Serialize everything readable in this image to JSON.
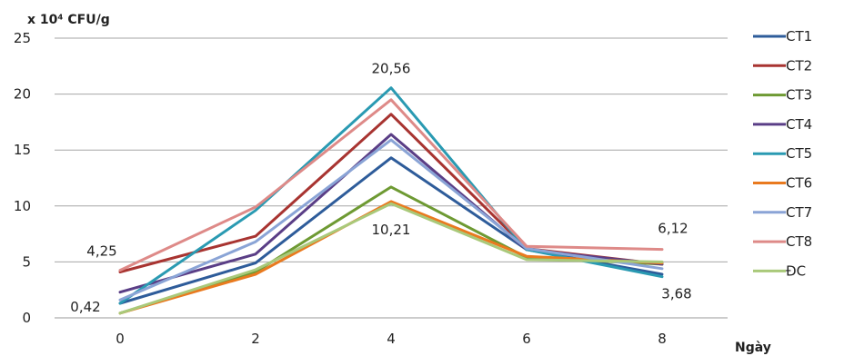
{
  "chart_data": {
    "type": "line",
    "title": "",
    "ylabel": "x 10⁴ CFU/g",
    "xlabel": "Ngày",
    "x": [
      0,
      2,
      4,
      6,
      8
    ],
    "ylim": [
      0,
      25
    ],
    "yticks": [
      0,
      5,
      10,
      15,
      20,
      25
    ],
    "grid": true,
    "legend_position": "right",
    "series": [
      {
        "name": "CT1",
        "color": "#2e5c9a",
        "values": [
          1.3,
          4.9,
          14.3,
          6.1,
          3.9
        ]
      },
      {
        "name": "CT2",
        "color": "#a83431",
        "values": [
          4.1,
          7.3,
          18.2,
          6.2,
          4.8
        ]
      },
      {
        "name": "CT3",
        "color": "#6e9a33",
        "values": [
          0.42,
          4.1,
          11.7,
          5.4,
          4.8
        ]
      },
      {
        "name": "CT4",
        "color": "#5a3e86",
        "values": [
          2.3,
          5.7,
          16.4,
          6.1,
          4.8
        ]
      },
      {
        "name": "CT5",
        "color": "#2a9ab2",
        "values": [
          1.3,
          9.6,
          20.56,
          6.1,
          3.68
        ]
      },
      {
        "name": "CT6",
        "color": "#e97a1f",
        "values": [
          0.42,
          3.9,
          10.4,
          5.5,
          4.9
        ]
      },
      {
        "name": "CT7",
        "color": "#8aa4d6",
        "values": [
          1.6,
          6.8,
          15.9,
          6.2,
          4.4
        ]
      },
      {
        "name": "CT8",
        "color": "#de8a88",
        "values": [
          4.25,
          9.9,
          19.5,
          6.4,
          6.12
        ]
      },
      {
        "name": "ĐC",
        "color": "#a9c97a",
        "values": [
          0.42,
          4.3,
          10.21,
          5.2,
          5.0
        ]
      }
    ],
    "annotations": [
      {
        "text": "20,56",
        "x": 4,
        "y": 20.56
      },
      {
        "text": "4,25",
        "x": 0,
        "y": 4.25
      },
      {
        "text": "10,21",
        "x": 4,
        "y": 10.21
      },
      {
        "text": "6,12",
        "x": 8,
        "y": 6.12
      },
      {
        "text": "3,68",
        "x": 8,
        "y": 3.68
      },
      {
        "text": "0,42",
        "x": 0,
        "y": 0.42
      }
    ]
  }
}
